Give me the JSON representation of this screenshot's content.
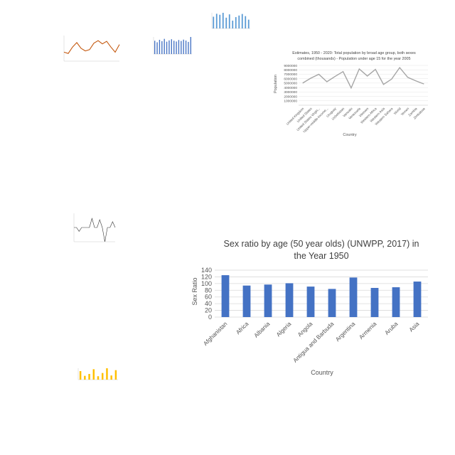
{
  "chart_data": [
    {
      "id": "main",
      "type": "bar",
      "title": "Sex ratio by age (50 year olds) (UNWPP, 2017) in the Year 1950",
      "xlabel": "Country",
      "ylabel": "Sex Ratio",
      "ylim": [
        0,
        140
      ],
      "yticks": [
        0,
        20,
        40,
        60,
        80,
        100,
        120,
        140
      ],
      "grid": true,
      "categories": [
        "Afghanistan",
        "Africa",
        "Albania",
        "Algeria",
        "Angola",
        "Antigua and Barbuda",
        "Argentina",
        "Armenia",
        "Aruba",
        "Asia"
      ],
      "values": [
        125,
        94,
        97,
        101,
        91,
        84,
        118,
        87,
        89,
        106
      ],
      "color": "#4472c4"
    },
    {
      "id": "population",
      "type": "line",
      "title": "Estimates, 1950 - 2020: Total population by broad age group, both sexes combined (thousands) - Population under age 15 for the year 2005",
      "xlabel": "Country",
      "ylabel": "Population",
      "ylim": [
        0,
        9000000
      ],
      "yticks": [
        1000000,
        2000000,
        3000000,
        4000000,
        5000000,
        6000000,
        7000000,
        8000000,
        9000000
      ],
      "categories": [
        "United Kingdom",
        "United States",
        "United States Virgin...",
        "Upper-middle-income...",
        "Uruguay",
        "Uzbekistan",
        "Vanuatu",
        "Venezuela",
        "Vietnam",
        "Western Africa",
        "Western Asia",
        "Western Sahara",
        "World",
        "Yemen",
        "Zambia",
        "Zimbabwe"
      ],
      "values": [
        5000000,
        6100000,
        7000000,
        5300000,
        6500000,
        7600000,
        3900000,
        8200000,
        6600000,
        8100000,
        4700000,
        5900000,
        8500000,
        6300000,
        5500000,
        4800000
      ],
      "color": "#a5a5a5"
    },
    {
      "id": "thumb-top",
      "type": "bar",
      "values": [
        60,
        75,
        70,
        80,
        55,
        72,
        40,
        58,
        66,
        74,
        63,
        45
      ],
      "color": "#5b9bd5"
    },
    {
      "id": "thumb-line",
      "type": "line",
      "values": [
        60,
        58,
        68,
        75,
        66,
        62,
        64,
        74,
        78,
        73,
        77,
        68,
        60,
        72
      ],
      "color": "#c55a11"
    },
    {
      "id": "thumb-bar2",
      "type": "bar",
      "values": [
        70,
        62,
        75,
        68,
        80,
        65,
        72,
        78,
        70,
        66,
        74,
        69,
        76,
        71,
        64,
        90
      ],
      "color": "#4472c4"
    },
    {
      "id": "thumb-spike",
      "type": "line",
      "values": [
        0,
        0,
        -6,
        0,
        0,
        0,
        0,
        14,
        0,
        0,
        12,
        0,
        -22,
        0,
        0,
        9,
        0
      ],
      "color": "#333333"
    },
    {
      "id": "thumb-yellow",
      "type": "bar",
      "values": [
        45,
        20,
        30,
        55,
        18,
        35,
        60,
        22,
        50
      ],
      "color": "#ffc000"
    }
  ]
}
